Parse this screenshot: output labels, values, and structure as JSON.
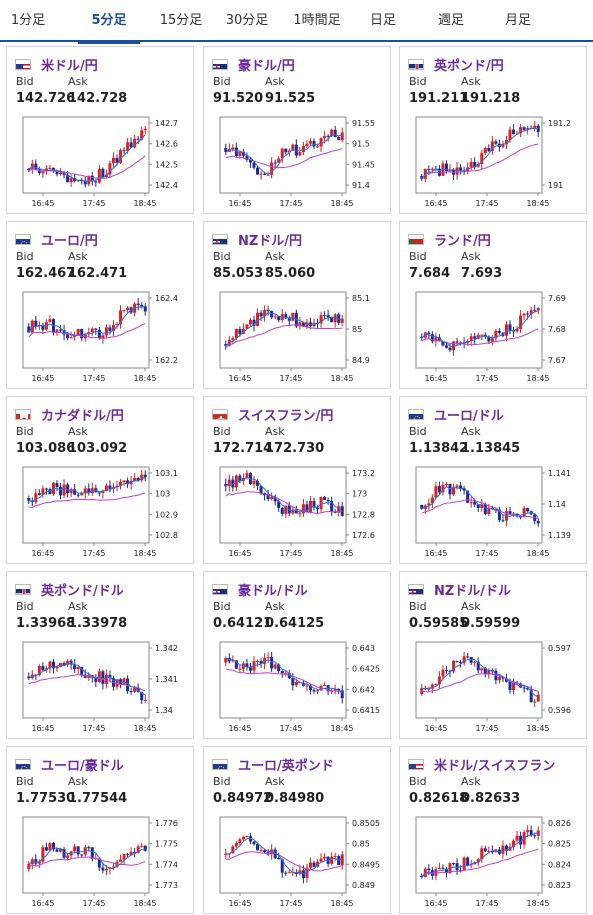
{
  "colors": {
    "tab_accent": "#1f4f9a",
    "pair_text": "#6a2a9e",
    "candle_up": "#e02020",
    "candle_down": "#1a2a9a",
    "ma_short": "#2a70d8",
    "ma_long": "#c040d0"
  },
  "tabs": [
    {
      "label": "1分足",
      "active": false
    },
    {
      "label": "5分足",
      "active": true
    },
    {
      "label": "15分足",
      "active": false
    },
    {
      "label": "30分足",
      "active": false
    },
    {
      "label": "1時間足",
      "active": false
    },
    {
      "label": "日足",
      "active": false
    },
    {
      "label": "週足",
      "active": false
    },
    {
      "label": "月足",
      "active": false
    }
  ],
  "cards": [
    {
      "pair": "米ドル/円",
      "flag": "us-jp-flag-icon",
      "bid_label": "Bid",
      "ask_label": "Ask",
      "bid": "142.726",
      "ask": "142.728",
      "chart_data": {
        "type": "candlestick",
        "x_ticks": [
          "16:45",
          "17:45",
          "18:45"
        ],
        "y_ticks": [
          "142.7",
          "142.6",
          "142.5",
          "142.4"
        ],
        "ylim": [
          142.33,
          142.75
        ],
        "trend": [
          0.3,
          0.25,
          0.2,
          0.1,
          0.3,
          0.6,
          0.9
        ]
      }
    },
    {
      "pair": "豪ドル/円",
      "flag": "au-jp-flag-icon",
      "bid_label": "Bid",
      "ask_label": "Ask",
      "bid": "91.520",
      "ask": "91.525",
      "chart_data": {
        "type": "candlestick",
        "x_ticks": [
          "16:45",
          "17:45",
          "18:45"
        ],
        "y_ticks": [
          "91.55",
          "91.5",
          "91.45",
          "91.4"
        ],
        "ylim": [
          91.37,
          91.57
        ],
        "trend": [
          0.6,
          0.5,
          0.2,
          0.55,
          0.6,
          0.75,
          0.8
        ]
      }
    },
    {
      "pair": "英ポンド/円",
      "flag": "gb-jp-flag-icon",
      "bid_label": "Bid",
      "ask_label": "Ask",
      "bid": "191.211",
      "ask": "191.218",
      "chart_data": {
        "type": "candlestick",
        "x_ticks": [
          "16:45",
          "17:45",
          "18:45"
        ],
        "y_ticks": [
          "191.2",
          "191"
        ],
        "ylim": [
          190.95,
          191.3
        ],
        "trend": [
          0.2,
          0.3,
          0.25,
          0.45,
          0.7,
          0.9,
          0.85
        ]
      }
    },
    {
      "pair": "ユーロ/円",
      "flag": "eu-jp-flag-icon",
      "bid_label": "Bid",
      "ask_label": "Ask",
      "bid": "162.467",
      "ask": "162.471",
      "chart_data": {
        "type": "candlestick",
        "x_ticks": [
          "16:45",
          "17:45",
          "18:45"
        ],
        "y_ticks": [
          "162.4",
          "162.2"
        ],
        "ylim": [
          162.12,
          162.52
        ],
        "trend": [
          0.55,
          0.6,
          0.35,
          0.5,
          0.45,
          0.85,
          0.8
        ]
      }
    },
    {
      "pair": "NZドル/円",
      "flag": "nz-jp-flag-icon",
      "bid_label": "Bid",
      "ask_label": "Ask",
      "bid": "85.053",
      "ask": "85.060",
      "chart_data": {
        "type": "candlestick",
        "x_ticks": [
          "16:45",
          "17:45",
          "18:45"
        ],
        "y_ticks": [
          "85.1",
          "85",
          "84.9"
        ],
        "ylim": [
          84.88,
          85.12
        ],
        "trend": [
          0.3,
          0.55,
          0.75,
          0.7,
          0.6,
          0.7,
          0.65
        ]
      }
    },
    {
      "pair": "ランド/円",
      "flag": "za-jp-flag-icon",
      "bid_label": "Bid",
      "ask_label": "Ask",
      "bid": "7.684",
      "ask": "7.693",
      "chart_data": {
        "type": "candlestick",
        "x_ticks": [
          "16:45",
          "17:45",
          "18:45"
        ],
        "y_ticks": [
          "7.69",
          "7.68",
          "7.67"
        ],
        "ylim": [
          7.665,
          7.695
        ],
        "trend": [
          0.4,
          0.3,
          0.3,
          0.35,
          0.45,
          0.6,
          0.9
        ]
      }
    },
    {
      "pair": "カナダドル/円",
      "flag": "ca-jp-flag-icon",
      "bid_label": "Bid",
      "ask_label": "Ask",
      "bid": "103.086",
      "ask": "103.092",
      "chart_data": {
        "type": "candlestick",
        "x_ticks": [
          "16:45",
          "17:45",
          "18:45"
        ],
        "y_ticks": [
          "103.1",
          "103",
          "102.9",
          "102.8"
        ],
        "ylim": [
          102.78,
          103.13
        ],
        "trend": [
          0.6,
          0.75,
          0.7,
          0.65,
          0.8,
          0.85,
          0.9
        ]
      }
    },
    {
      "pair": "スイスフラン/円",
      "flag": "ch-jp-flag-icon",
      "bid_label": "Bid",
      "ask_label": "Ask",
      "bid": "172.714",
      "ask": "172.730",
      "chart_data": {
        "type": "candlestick",
        "x_ticks": [
          "16:45",
          "17:45",
          "18:45"
        ],
        "y_ticks": [
          "173.2",
          "173",
          "172.8",
          "172.6"
        ],
        "ylim": [
          172.55,
          173.25
        ],
        "trend": [
          0.8,
          0.9,
          0.6,
          0.4,
          0.45,
          0.55,
          0.4
        ]
      }
    },
    {
      "pair": "ユーロ/ドル",
      "flag": "eu-us-flag-icon",
      "bid_label": "Bid",
      "ask_label": "Ask",
      "bid": "1.13842",
      "ask": "1.13845",
      "chart_data": {
        "type": "candlestick",
        "x_ticks": [
          "16:45",
          "17:45",
          "18:45"
        ],
        "y_ticks": [
          "1.141",
          "1.14",
          "1.139"
        ],
        "ylim": [
          1.1383,
          1.1413
        ],
        "trend": [
          0.5,
          0.75,
          0.7,
          0.45,
          0.35,
          0.4,
          0.3
        ]
      }
    },
    {
      "pair": "英ポンド/ドル",
      "flag": "gb-us-flag-icon",
      "bid_label": "Bid",
      "ask_label": "Ask",
      "bid": "1.33968",
      "ask": "1.33978",
      "chart_data": {
        "type": "candlestick",
        "x_ticks": [
          "16:45",
          "17:45",
          "18:45"
        ],
        "y_ticks": [
          "1.342",
          "1.341",
          "1.34"
        ],
        "ylim": [
          1.3397,
          1.3425
        ],
        "trend": [
          0.55,
          0.7,
          0.8,
          0.6,
          0.5,
          0.45,
          0.2
        ]
      }
    },
    {
      "pair": "豪ドル/ドル",
      "flag": "au-us-flag-icon",
      "bid_label": "Bid",
      "ask_label": "Ask",
      "bid": "0.64121",
      "ask": "0.64125",
      "chart_data": {
        "type": "candlestick",
        "x_ticks": [
          "16:45",
          "17:45",
          "18:45"
        ],
        "y_ticks": [
          "0.643",
          "0.6425",
          "0.642",
          "0.6415"
        ],
        "ylim": [
          0.6411,
          0.6432
        ],
        "trend": [
          0.75,
          0.65,
          0.8,
          0.55,
          0.4,
          0.35,
          0.25
        ]
      }
    },
    {
      "pair": "NZドル/ドル",
      "flag": "nz-us-flag-icon",
      "bid_label": "Bid",
      "ask_label": "Ask",
      "bid": "0.59585",
      "ask": "0.59599",
      "chart_data": {
        "type": "candlestick",
        "x_ticks": [
          "16:45",
          "17:45",
          "18:45"
        ],
        "y_ticks": [
          "0.597",
          "0.596"
        ],
        "ylim": [
          0.5958,
          0.5975
        ],
        "trend": [
          0.3,
          0.55,
          0.8,
          0.7,
          0.5,
          0.4,
          0.2
        ]
      }
    },
    {
      "pair": "ユーロ/豪ドル",
      "flag": "eu-au-flag-icon",
      "bid_label": "Bid",
      "ask_label": "Ask",
      "bid": "1.77530",
      "ask": "1.77544",
      "chart_data": {
        "type": "candlestick",
        "x_ticks": [
          "16:45",
          "17:45",
          "18:45"
        ],
        "y_ticks": [
          "1.776",
          "1.775",
          "1.774",
          "1.773"
        ],
        "ylim": [
          1.7727,
          1.7766
        ],
        "trend": [
          0.3,
          0.65,
          0.5,
          0.6,
          0.3,
          0.5,
          0.6
        ]
      }
    },
    {
      "pair": "ユーロ/英ポンド",
      "flag": "eu-gb-flag-icon",
      "bid_label": "Bid",
      "ask_label": "Ask",
      "bid": "0.84972",
      "ask": "0.84980",
      "chart_data": {
        "type": "candlestick",
        "x_ticks": [
          "16:45",
          "17:45",
          "18:45"
        ],
        "y_ticks": [
          "0.8505",
          "0.85",
          "0.8495",
          "0.849"
        ],
        "ylim": [
          0.8488,
          0.8507
        ],
        "trend": [
          0.5,
          0.75,
          0.6,
          0.3,
          0.25,
          0.4,
          0.45
        ]
      }
    },
    {
      "pair": "米ドル/スイスフラン",
      "flag": "us-ch-flag-icon",
      "bid_label": "Bid",
      "ask_label": "Ask",
      "bid": "0.82618",
      "ask": "0.82633",
      "chart_data": {
        "type": "candlestick",
        "x_ticks": [
          "16:45",
          "17:45",
          "18:45"
        ],
        "y_ticks": [
          "0.826",
          "0.825",
          "0.824",
          "0.823"
        ],
        "ylim": [
          0.8227,
          0.8263
        ],
        "trend": [
          0.2,
          0.3,
          0.35,
          0.5,
          0.6,
          0.7,
          0.9
        ]
      }
    }
  ]
}
